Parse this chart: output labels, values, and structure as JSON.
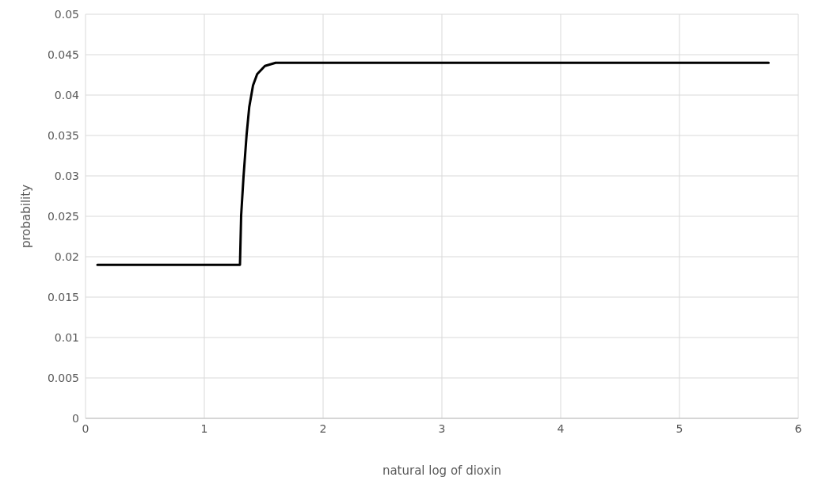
{
  "chart_data": {
    "type": "line",
    "xlabel": "natural log of dioxin",
    "ylabel": "probability",
    "xlim": [
      0,
      6
    ],
    "xticks": [
      0,
      1,
      2,
      3,
      4,
      5,
      6
    ],
    "ylim": [
      0,
      0.05
    ],
    "yticks": [
      0,
      0.005,
      0.01,
      0.015,
      0.02,
      0.025,
      0.03,
      0.035,
      0.04,
      0.045,
      0.05
    ],
    "grid": true,
    "marker": "none",
    "line_style": "solid",
    "series": [
      {
        "color": "#000000",
        "x": [
          0.1,
          0.5,
          1.0,
          1.3,
          1.31,
          1.33,
          1.356,
          1.378,
          1.41,
          1.445,
          1.51,
          1.6,
          2.0,
          3.0,
          4.0,
          5.0,
          5.75
        ],
        "values": [
          0.019,
          0.019,
          0.019,
          0.019,
          0.0251,
          0.0299,
          0.0351,
          0.0385,
          0.0412,
          0.0426,
          0.0436,
          0.044,
          0.044,
          0.044,
          0.044,
          0.044,
          0.044
        ]
      }
    ]
  }
}
